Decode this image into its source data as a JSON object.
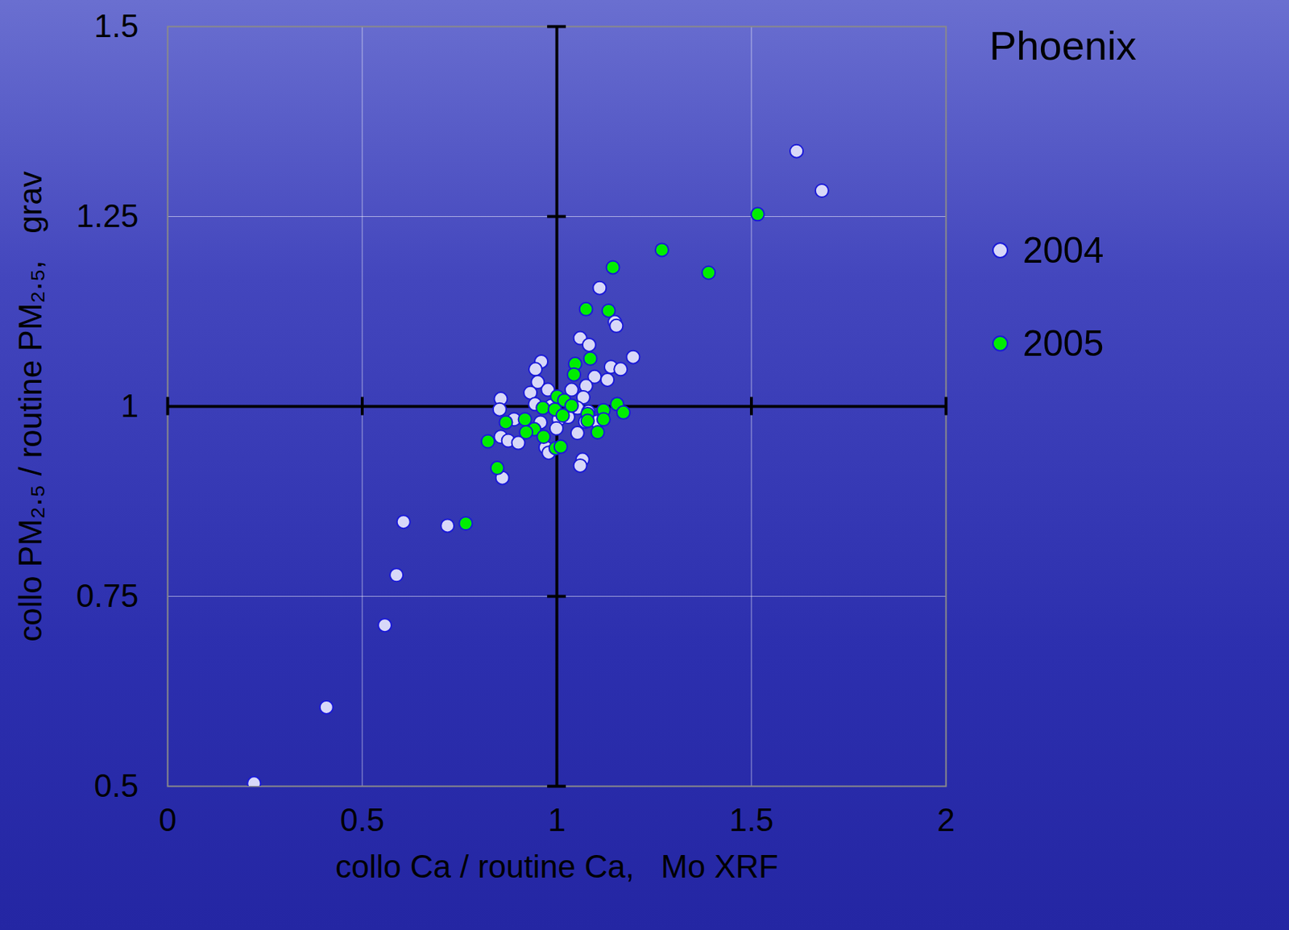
{
  "chart_data": {
    "type": "scatter",
    "title": "Phoenix",
    "xlabel": "collo Ca / routine Ca,   Mo XRF",
    "ylabel": "collo PM₂.₅ / routine PM₂.₅,   grav",
    "xlim": [
      0,
      2
    ],
    "xticks": [
      0,
      0.5,
      1,
      1.5,
      2
    ],
    "ylim": [
      0.5,
      1.5
    ],
    "yticks": [
      0.5,
      0.75,
      1,
      1.25,
      1.5
    ],
    "grid": true,
    "legend": "right",
    "marker": "circle",
    "series": [
      {
        "name": "2004",
        "color": "#d8d8f8",
        "x": [
          1.616,
          1.681,
          1.11,
          1.149,
          1.153,
          1.06,
          1.083,
          1.196,
          1.139,
          1.164,
          1.097,
          1.13,
          0.96,
          0.945,
          0.951,
          1.075,
          0.977,
          0.932,
          0.856,
          1.038,
          1.068,
          0.944,
          0.986,
          1.053,
          0.853,
          0.89,
          0.958,
          1.005,
          1.029,
          1.053,
          0.856,
          0.875,
          0.901,
          0.971,
          0.979,
          0.999,
          1.066,
          1.06,
          0.86,
          0.606,
          0.719,
          0.588,
          0.558,
          0.408,
          0.222,
          1.103,
          1.073,
          1.081
        ],
        "y": [
          1.336,
          1.284,
          1.156,
          1.111,
          1.106,
          1.09,
          1.081,
          1.065,
          1.052,
          1.049,
          1.039,
          1.035,
          1.059,
          1.049,
          1.032,
          1.027,
          1.022,
          1.018,
          1.01,
          1.022,
          1.012,
          1.003,
          1.001,
          0.998,
          0.996,
          0.983,
          0.979,
          0.983,
          0.986,
          0.965,
          0.96,
          0.955,
          0.952,
          0.946,
          0.939,
          0.971,
          0.93,
          0.922,
          0.906,
          0.848,
          0.843,
          0.778,
          0.712,
          0.604,
          0.504,
          0.98,
          0.98,
          0.993
        ]
      },
      {
        "name": "2005",
        "color": "#00ee00",
        "x": [
          1.516,
          1.27,
          1.144,
          1.39,
          1.075,
          1.133,
          1.086,
          1.047,
          1.044,
          1.001,
          1.019,
          1.038,
          0.964,
          0.995,
          1.015,
          1.155,
          1.171,
          1.12,
          1.079,
          1.079,
          1.12,
          1.105,
          0.918,
          0.869,
          0.942,
          0.921,
          0.966,
          0.823,
          0.997,
          1.01,
          0.847,
          0.766
        ],
        "y": [
          1.253,
          1.206,
          1.183,
          1.176,
          1.128,
          1.126,
          1.063,
          1.056,
          1.042,
          1.013,
          1.008,
          1.001,
          0.998,
          0.996,
          0.988,
          1.003,
          0.992,
          0.995,
          0.99,
          0.981,
          0.983,
          0.966,
          0.983,
          0.979,
          0.97,
          0.966,
          0.96,
          0.954,
          0.945,
          0.947,
          0.919,
          0.846
        ]
      }
    ]
  }
}
